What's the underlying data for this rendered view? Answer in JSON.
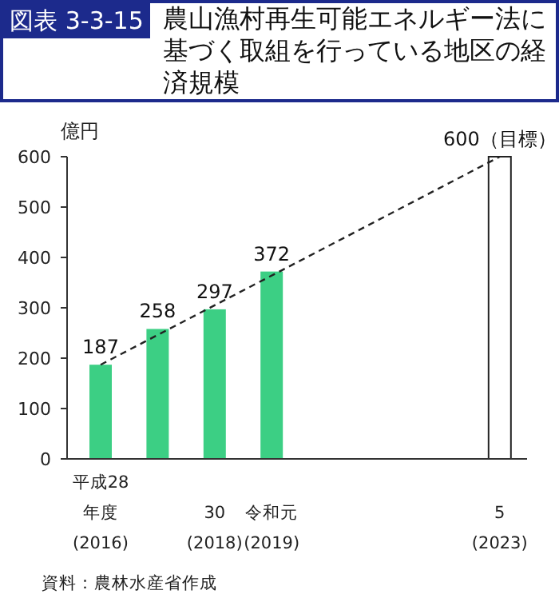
{
  "chart_data": {
    "type": "bar",
    "title": "図表 3-3-15",
    "subtitle": "農山漁村再生可能エネルギー法に基づく取組を行っている地区の経済規模",
    "ylabel": "億円",
    "categories": [
      "平成28年度\n(2016)",
      null,
      "30\n(2018)",
      "令和元\n(2019)",
      null,
      null,
      null,
      "5\n(2023)"
    ],
    "series": [
      {
        "colors": [
          "#3ccf84",
          "#3ccf84",
          "#3ccf84",
          "#3ccf84",
          null,
          null,
          null,
          "#ffffff"
        ],
        "values": [
          187,
          258,
          297,
          372,
          null,
          null,
          null,
          600
        ],
        "value_labels": [
          "187",
          "258",
          "297",
          "372",
          null,
          null,
          null,
          "600（目標）"
        ]
      },
      {
        "type": "line",
        "color": "#222222",
        "line_style": "dashed",
        "values": [
          187,
          null,
          null,
          null,
          null,
          null,
          null,
          600
        ]
      }
    ],
    "ylim": [
      0,
      600
    ],
    "yticks": [
      0,
      100,
      200,
      300,
      400,
      500,
      600
    ],
    "grid": false,
    "annotations": [
      "資料：農林水産省作成"
    ]
  }
}
